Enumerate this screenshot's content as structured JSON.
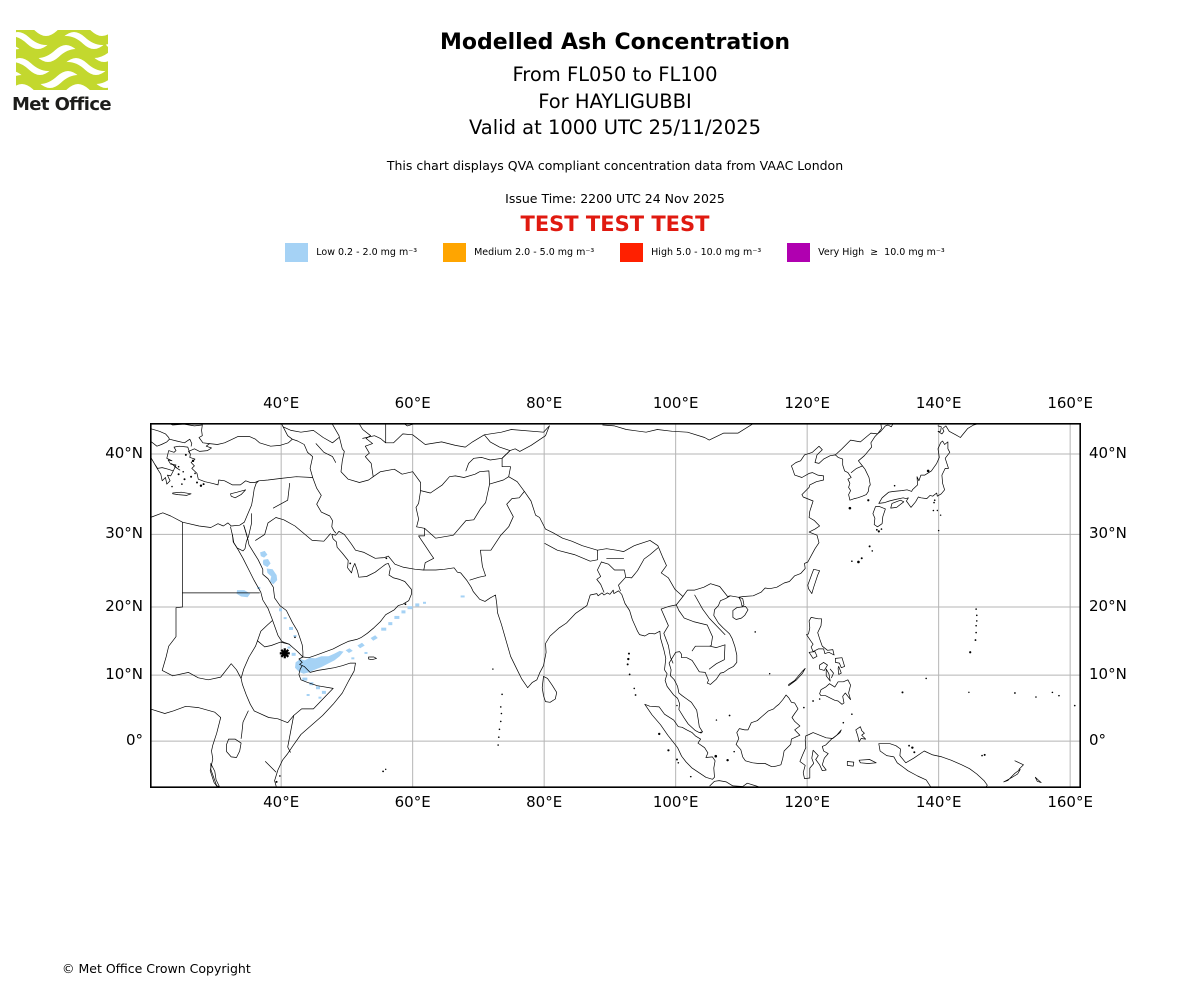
{
  "header": {
    "logo_text": "Met Office",
    "title": "Modelled Ash Concentration",
    "subtitle_flight_levels": "From FL050 to FL100",
    "subtitle_volcano": "For HAYLIGUBBI",
    "subtitle_valid": "Valid at 1000 UTC 25/11/2025",
    "note": "This chart displays QVA compliant concentration data from VAAC London",
    "issue_time": "Issue Time: 2200 UTC 24 Nov 2025",
    "test_banner": "TEST TEST TEST",
    "test_banner_color": "#e01a10"
  },
  "legend": {
    "items": [
      {
        "key": "low",
        "label": "Low 0.2 - 2.0 mg m⁻³",
        "color": "#a5d2f5"
      },
      {
        "key": "medium",
        "label": "Medium 2.0 - 5.0 mg m⁻³",
        "color": "#ffa500"
      },
      {
        "key": "high",
        "label": "High 5.0 - 10.0 mg m⁻³",
        "color": "#ff2000"
      },
      {
        "key": "very_high",
        "label": "Very High  ≥  10.0 mg m⁻³",
        "color": "#b000b0"
      }
    ]
  },
  "footer": {
    "copyright": "© Met Office Crown Copyright"
  },
  "chart_data": {
    "type": "map",
    "projection": "mercator",
    "extent": {
      "lon_min": 20.05,
      "lon_max": 161.65,
      "lat_min": -7.12,
      "lat_max": 43.52
    },
    "gridlines": {
      "lons": [
        40,
        60,
        80,
        100,
        120,
        140,
        160
      ],
      "lats": [
        0,
        10,
        20,
        30,
        40
      ]
    },
    "x_tick_labels": [
      "40°E",
      "60°E",
      "80°E",
      "100°E",
      "120°E",
      "140°E",
      "160°E"
    ],
    "y_tick_labels": [
      "0°",
      "10°N",
      "20°N",
      "30°N",
      "40°N"
    ],
    "grid_color": "#b5b5b5",
    "coast_color": "#000000",
    "colors": {
      "low": "#a5d2f5",
      "medium": "#ffa500",
      "high": "#ff2000",
      "very_high": "#b000b0"
    },
    "volcano": {
      "name": "HAYLIGUBBI",
      "lon": 40.55,
      "lat": 13.25
    },
    "ash": {
      "low_polygons": [
        [
          [
            36.8,
            27.6
          ],
          [
            37.5,
            27.8
          ],
          [
            37.9,
            27.3
          ],
          [
            37.4,
            26.9
          ],
          [
            36.9,
            27.1
          ]
        ],
        [
          [
            37.3,
            26.6
          ],
          [
            38.0,
            26.7
          ],
          [
            38.4,
            26.1
          ],
          [
            37.9,
            25.6
          ],
          [
            37.3,
            25.9
          ],
          [
            37.2,
            26.3
          ]
        ],
        [
          [
            37.8,
            25.4
          ],
          [
            38.7,
            25.3
          ],
          [
            39.3,
            24.5
          ],
          [
            39.4,
            23.8
          ],
          [
            38.8,
            23.2
          ],
          [
            38.3,
            23.6
          ],
          [
            38.5,
            24.3
          ],
          [
            37.9,
            24.8
          ]
        ],
        [
          [
            33.3,
            22.4
          ],
          [
            34.4,
            22.4
          ],
          [
            35.3,
            21.9
          ],
          [
            34.9,
            21.4
          ],
          [
            33.9,
            21.5
          ],
          [
            33.2,
            21.9
          ]
        ],
        [
          [
            42.2,
            11.9
          ],
          [
            42.9,
            12.4
          ],
          [
            43.6,
            12.2
          ],
          [
            44.3,
            12.6
          ],
          [
            45.2,
            12.5
          ],
          [
            46.1,
            12.8
          ],
          [
            47.2,
            12.8
          ],
          [
            48.1,
            13.2
          ],
          [
            48.9,
            13.6
          ],
          [
            49.5,
            13.5
          ],
          [
            48.9,
            12.8
          ],
          [
            48.1,
            12.2
          ],
          [
            47.1,
            11.7
          ],
          [
            46.1,
            11.2
          ],
          [
            45.1,
            10.8
          ],
          [
            44.2,
            10.4
          ],
          [
            43.4,
            10.2
          ],
          [
            42.7,
            10.5
          ],
          [
            42.1,
            11.1
          ]
        ],
        [
          [
            49.8,
            13.7
          ],
          [
            50.4,
            14.0
          ],
          [
            50.9,
            13.6
          ],
          [
            50.3,
            13.3
          ]
        ],
        [
          [
            51.6,
            14.4
          ],
          [
            52.3,
            14.8
          ],
          [
            52.7,
            14.4
          ],
          [
            52.0,
            14.0
          ]
        ],
        [
          [
            53.6,
            15.5
          ],
          [
            54.3,
            15.9
          ],
          [
            54.7,
            15.5
          ],
          [
            54.0,
            15.1
          ]
        ]
      ],
      "low_speckles": [
        [
          55.6,
          16.8,
          5,
          3
        ],
        [
          56.6,
          17.6,
          4,
          3
        ],
        [
          57.6,
          18.5,
          5,
          3
        ],
        [
          58.6,
          19.3,
          4,
          3
        ],
        [
          59.6,
          19.9,
          5,
          3
        ],
        [
          60.7,
          20.3,
          4,
          3
        ],
        [
          61.8,
          20.6,
          3,
          2
        ],
        [
          50.9,
          12.5,
          3,
          2
        ],
        [
          52.9,
          13.3,
          3,
          2
        ],
        [
          43.6,
          9.4,
          5,
          3
        ],
        [
          44.6,
          8.7,
          4,
          3
        ],
        [
          45.6,
          8.1,
          4,
          3
        ],
        [
          46.5,
          7.4,
          4,
          3
        ],
        [
          44.1,
          7.0,
          3,
          2
        ],
        [
          45.9,
          6.6,
          3,
          2
        ],
        [
          36.6,
          22.7,
          3,
          2
        ],
        [
          39.9,
          19.6,
          3,
          3
        ],
        [
          40.6,
          18.4,
          3,
          2
        ],
        [
          41.5,
          16.9,
          4,
          3
        ],
        [
          42.1,
          15.8,
          3,
          2
        ],
        [
          41.9,
          13.1,
          4,
          3
        ],
        [
          41.2,
          14.1,
          3,
          2
        ],
        [
          67.6,
          21.5,
          4,
          2
        ]
      ]
    }
  }
}
